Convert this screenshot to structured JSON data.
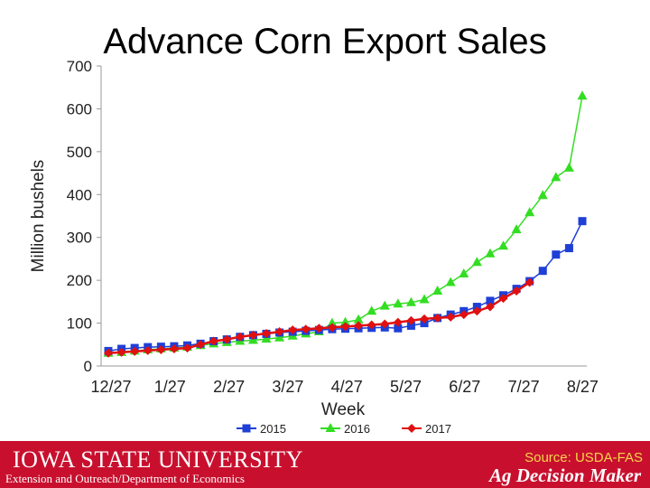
{
  "chart_data": {
    "type": "line",
    "title": "Advance Corn Export Sales",
    "xlabel": "Week",
    "ylabel": "Million bushels",
    "ylim": [
      0,
      700
    ],
    "yticks": [
      0,
      100,
      200,
      300,
      400,
      500,
      600,
      700
    ],
    "xtick_labels": [
      "12/27",
      "1/27",
      "2/27",
      "3/27",
      "4/27",
      "5/27",
      "6/27",
      "7/27",
      "8/27"
    ],
    "grid": false,
    "legend": "bottom",
    "series": [
      {
        "name": "2015",
        "color": "#1f3fd6",
        "marker": "square",
        "values": [
          35,
          40,
          42,
          44,
          45,
          46,
          48,
          52,
          58,
          62,
          68,
          72,
          75,
          78,
          80,
          82,
          84,
          86,
          87,
          88,
          89,
          90,
          88,
          94,
          100,
          112,
          120,
          128,
          138,
          152,
          165,
          180,
          198,
          222,
          260,
          275,
          338
        ]
      },
      {
        "name": "2016",
        "color": "#33dd22",
        "marker": "triangle",
        "values": [
          30,
          32,
          35,
          38,
          40,
          42,
          44,
          48,
          52,
          55,
          58,
          60,
          63,
          66,
          70,
          75,
          80,
          100,
          102,
          108,
          128,
          140,
          145,
          148,
          155,
          175,
          195,
          215,
          242,
          262,
          280,
          318,
          358,
          398,
          440,
          462,
          630
        ]
      },
      {
        "name": "2017",
        "color": "#e01010",
        "marker": "diamond",
        "values": [
          30,
          32,
          34,
          36,
          38,
          40,
          42,
          50,
          58,
          62,
          68,
          72,
          76,
          80,
          84,
          86,
          88,
          90,
          92,
          94,
          96,
          98,
          102,
          106,
          110,
          112,
          114,
          120,
          128,
          138,
          158,
          175,
          195
        ]
      }
    ]
  },
  "footer": {
    "university": "IOWA STATE UNIVERSITY",
    "department": "Extension and Outreach/Department of Economics",
    "source": "Source: USDA-FAS",
    "brand": "Ag Decision Maker"
  }
}
